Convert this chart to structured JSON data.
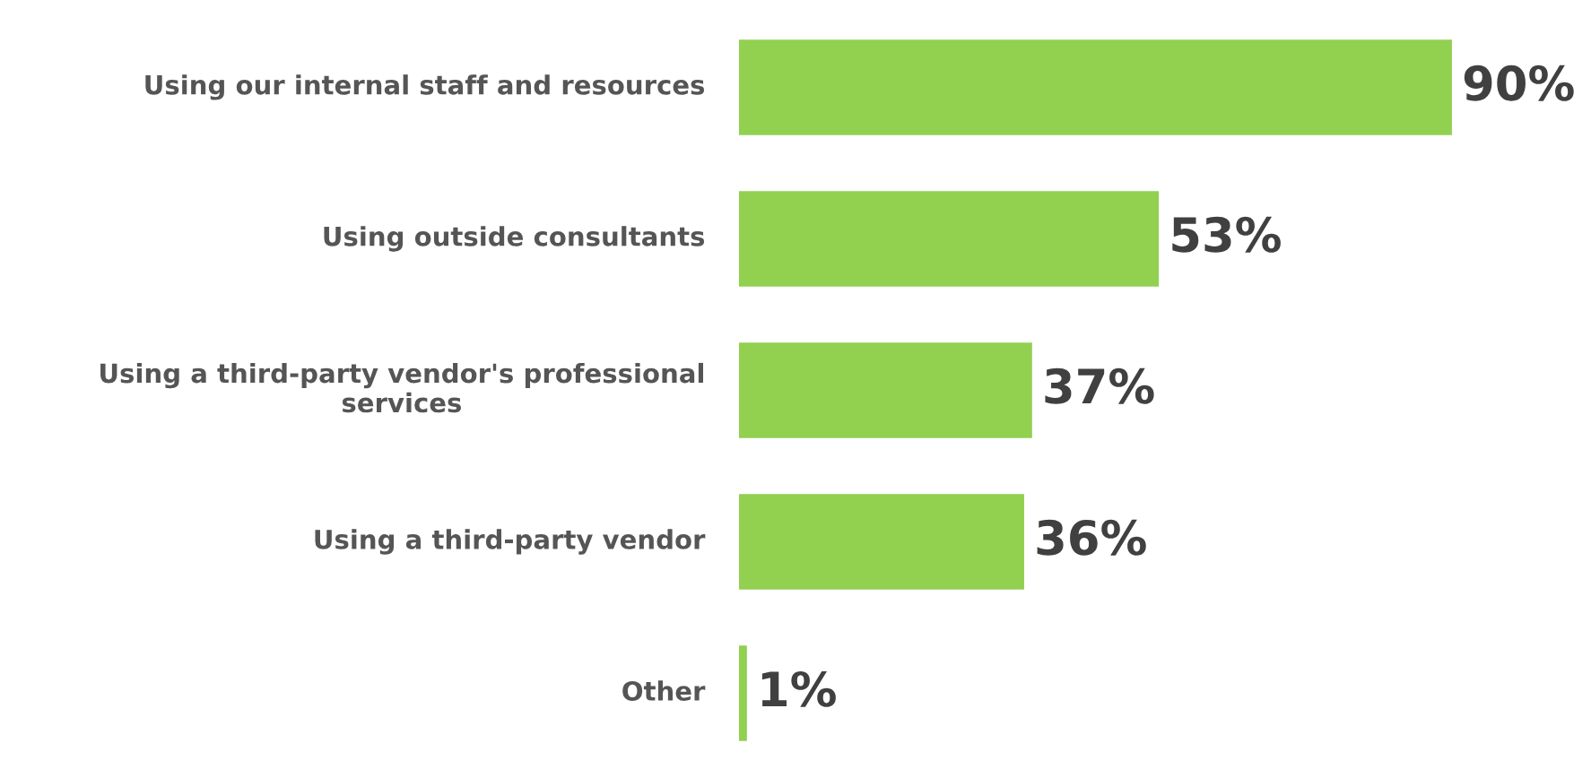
{
  "chart_data": {
    "type": "bar",
    "orientation": "horizontal",
    "categories": [
      "Using our internal staff and resources",
      "Using outside consultants",
      "Using a third-party vendor's professional services",
      "Using a third-party vendor",
      "Other"
    ],
    "values": [
      90,
      53,
      37,
      36,
      1
    ],
    "value_labels": [
      "90%",
      "53%",
      "37%",
      "36%",
      "1%"
    ],
    "color": "#92d050"
  }
}
